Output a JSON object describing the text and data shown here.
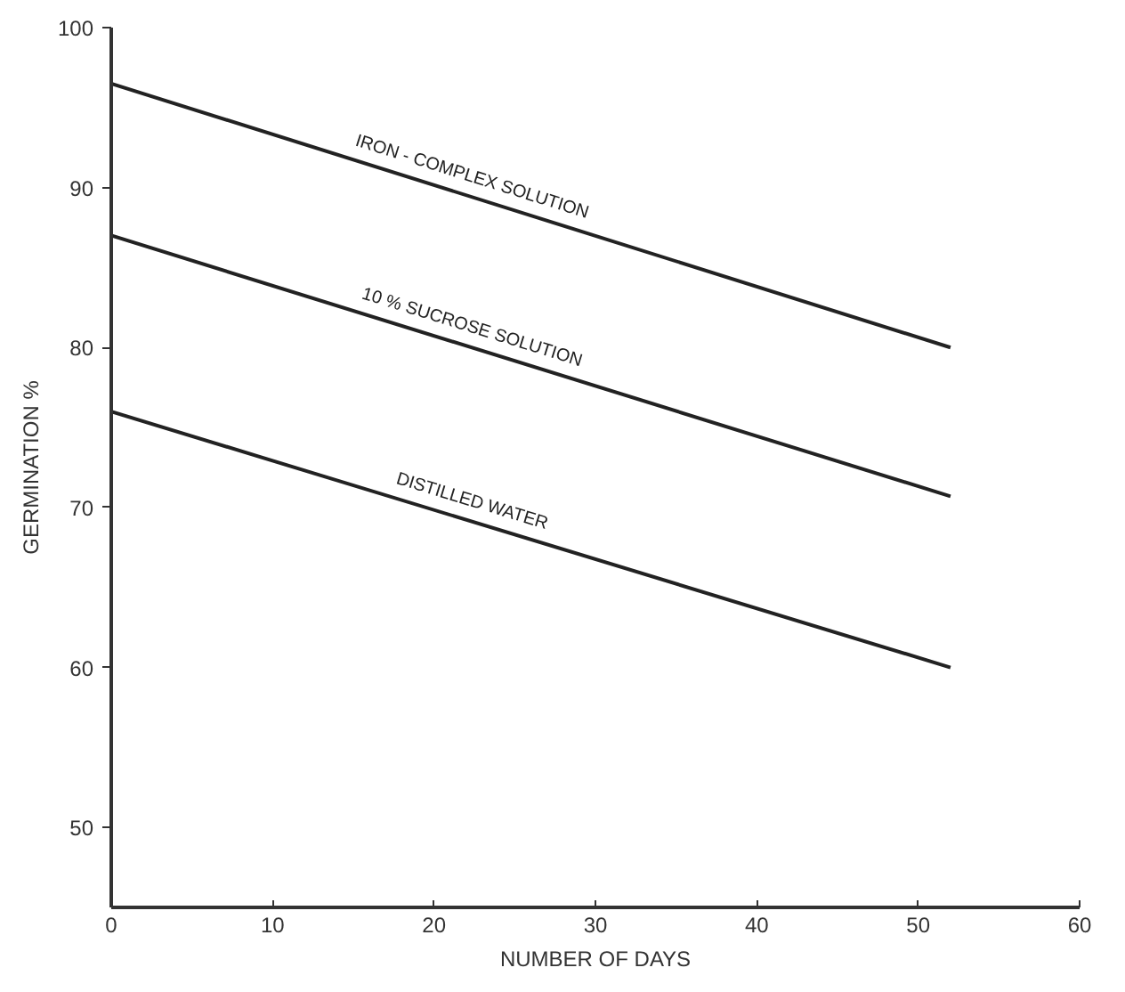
{
  "chart_data": {
    "type": "line",
    "xlabel": "NUMBER OF DAYS",
    "ylabel": "GERMINATION %",
    "x": [
      0,
      52
    ],
    "series": [
      {
        "name": "IRON - COMPLEX SOLUTION",
        "color": "#222222",
        "values": [
          96.5,
          80
        ]
      },
      {
        "name": "10 % SUCROSE SOLUTION",
        "color": "#222222",
        "values": [
          87,
          70.7
        ]
      },
      {
        "name": "DISTILLED WATER",
        "color": "#222222",
        "values": [
          76,
          60
        ]
      }
    ],
    "xlim": [
      0,
      60
    ],
    "ylim": [
      45,
      100
    ],
    "xticks": [
      0,
      10,
      20,
      30,
      40,
      50,
      60
    ],
    "yticks": [
      50,
      60,
      70,
      80,
      90,
      100
    ],
    "grid": false,
    "marker": "none",
    "line_style": "solid"
  }
}
